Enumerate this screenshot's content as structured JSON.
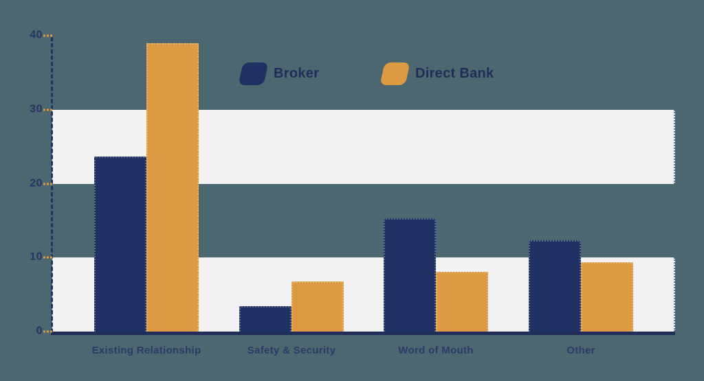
{
  "chart_data": {
    "type": "bar",
    "title": "",
    "xlabel": "",
    "ylabel": "",
    "categories": [
      "Existing Relationship",
      "Safety & Security",
      "Word of Mouth",
      "Other"
    ],
    "series": [
      {
        "name": "Broker",
        "color": "#1f3162",
        "values": [
          23.7,
          3.4,
          15.3,
          12.3
        ]
      },
      {
        "name": "Direct Bank",
        "color": "#dd9a43",
        "values": [
          39.0,
          6.8,
          8.1,
          9.4
        ]
      }
    ],
    "ylim": [
      0,
      40
    ],
    "yticks": [
      40,
      30,
      20,
      10,
      0
    ],
    "highlight_bands": [
      [
        20,
        30
      ],
      [
        0,
        10
      ]
    ],
    "legend_position": "top-center",
    "grid": "alternating-horizontal-bands"
  },
  "colors": {
    "background": "#4d6770",
    "band": "#f2f2f2",
    "bar_broker": "#1f3162",
    "bar_direct_bank": "#dd9a43",
    "axis_line": "#1f2d58",
    "tick_mark": "#dd9a43",
    "tick_text": "#243463",
    "category_text": "#2b3a69",
    "legend_text": "#1f2d58"
  }
}
